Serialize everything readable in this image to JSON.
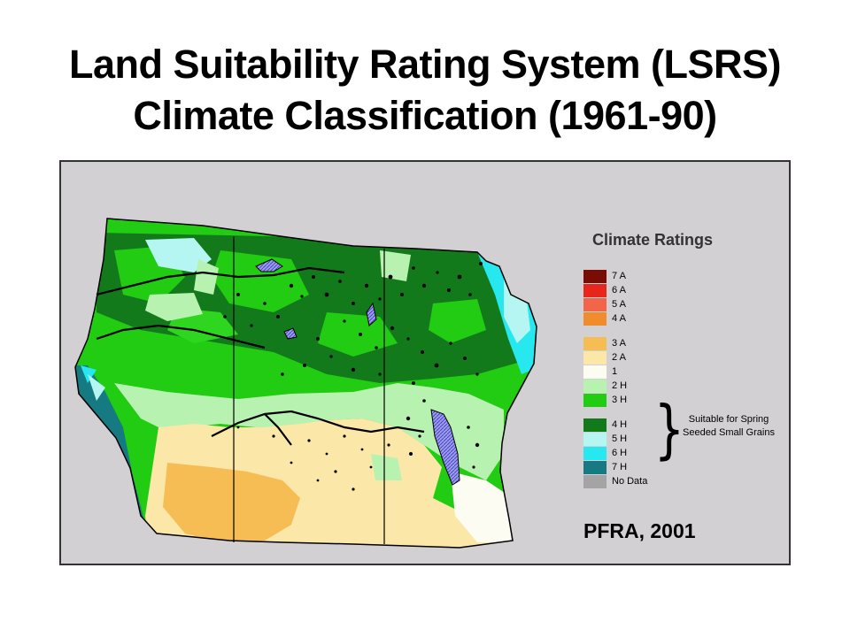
{
  "title": {
    "line1": "Land Suitability Rating System (LSRS)",
    "line2": "Climate Classification (1961-90)"
  },
  "legend": {
    "title": "Climate Ratings",
    "items": [
      {
        "label": "7 A",
        "color": "#7a0c06"
      },
      {
        "label": "6 A",
        "color": "#e8251c"
      },
      {
        "label": "5 A",
        "color": "#f2654a"
      },
      {
        "label": "4 A",
        "color": "#f08c2a"
      },
      {
        "label": "3 A",
        "color": "#f6bd55"
      },
      {
        "label": "2 A",
        "color": "#fbe7a8"
      },
      {
        "label": "1",
        "color": "#fdfcf2"
      },
      {
        "label": "2 H",
        "color": "#b8f2b0"
      },
      {
        "label": "3 H",
        "color": "#21cc12"
      },
      {
        "label": "4 H",
        "color": "#137a1c"
      },
      {
        "label": "5 H",
        "color": "#b6f6f2"
      },
      {
        "label": "6 H",
        "color": "#27e8ef"
      },
      {
        "label": "7 H",
        "color": "#167a82"
      },
      {
        "label": "No Data",
        "color": "#a4a4a4"
      }
    ],
    "brace_note": "Suitable for Spring Seeded Small Grains"
  },
  "credit": "PFRA, 2001",
  "colors": {
    "background": "#d2d0d3",
    "water": "#8c8ce6",
    "border": "#000000"
  }
}
